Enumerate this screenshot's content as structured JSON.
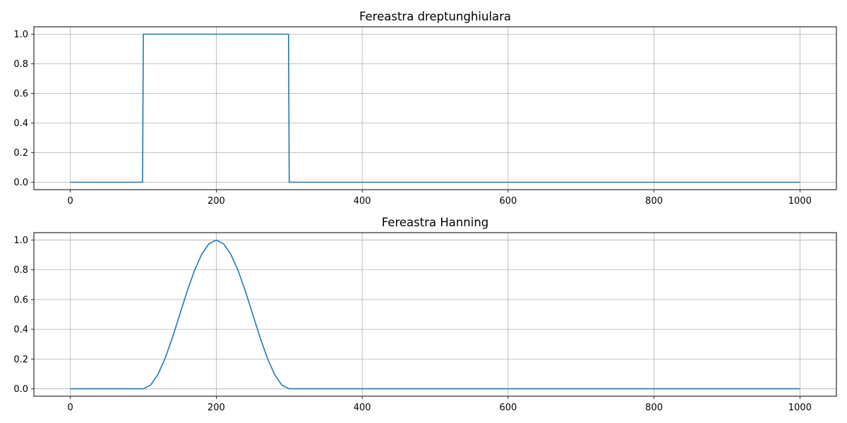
{
  "chart_data": [
    {
      "type": "line",
      "title": "Fereastra dreptunghiulara",
      "xlabel": "",
      "ylabel": "",
      "xlim": [
        -50,
        1050
      ],
      "ylim": [
        -0.05,
        1.05
      ],
      "xticks": [
        0,
        200,
        400,
        600,
        800,
        1000
      ],
      "yticks": [
        0.0,
        0.2,
        0.4,
        0.6,
        0.8,
        1.0
      ],
      "xtick_labels": [
        "0",
        "200",
        "400",
        "600",
        "800",
        "1000"
      ],
      "ytick_labels": [
        "0.0",
        "0.2",
        "0.4",
        "0.6",
        "0.8",
        "1.0"
      ],
      "grid": true,
      "series": [
        {
          "color": "#1f77b4",
          "x": [
            0,
            99,
            100,
            299,
            300,
            1000
          ],
          "y": [
            0,
            0,
            1,
            1,
            0,
            0
          ]
        }
      ]
    },
    {
      "type": "line",
      "title": "Fereastra Hanning",
      "xlabel": "",
      "ylabel": "",
      "xlim": [
        -50,
        1050
      ],
      "ylim": [
        -0.05,
        1.05
      ],
      "xticks": [
        0,
        200,
        400,
        600,
        800,
        1000
      ],
      "yticks": [
        0.0,
        0.2,
        0.4,
        0.6,
        0.8,
        1.0
      ],
      "xtick_labels": [
        "0",
        "200",
        "400",
        "600",
        "800",
        "1000"
      ],
      "ytick_labels": [
        "0.0",
        "0.2",
        "0.4",
        "0.6",
        "0.8",
        "1.0"
      ],
      "grid": true,
      "series": [
        {
          "color": "#1f77b4",
          "x": [
            0,
            100,
            110,
            120,
            130,
            140,
            150,
            160,
            170,
            180,
            190,
            200,
            210,
            220,
            230,
            240,
            250,
            260,
            270,
            280,
            290,
            300,
            1000
          ],
          "y": [
            0,
            0,
            0.0245,
            0.0955,
            0.2061,
            0.3455,
            0.5,
            0.6545,
            0.7939,
            0.9045,
            0.9755,
            1.0,
            0.9755,
            0.9045,
            0.7939,
            0.6545,
            0.5,
            0.3455,
            0.2061,
            0.0955,
            0.0245,
            0,
            0
          ]
        }
      ]
    }
  ]
}
